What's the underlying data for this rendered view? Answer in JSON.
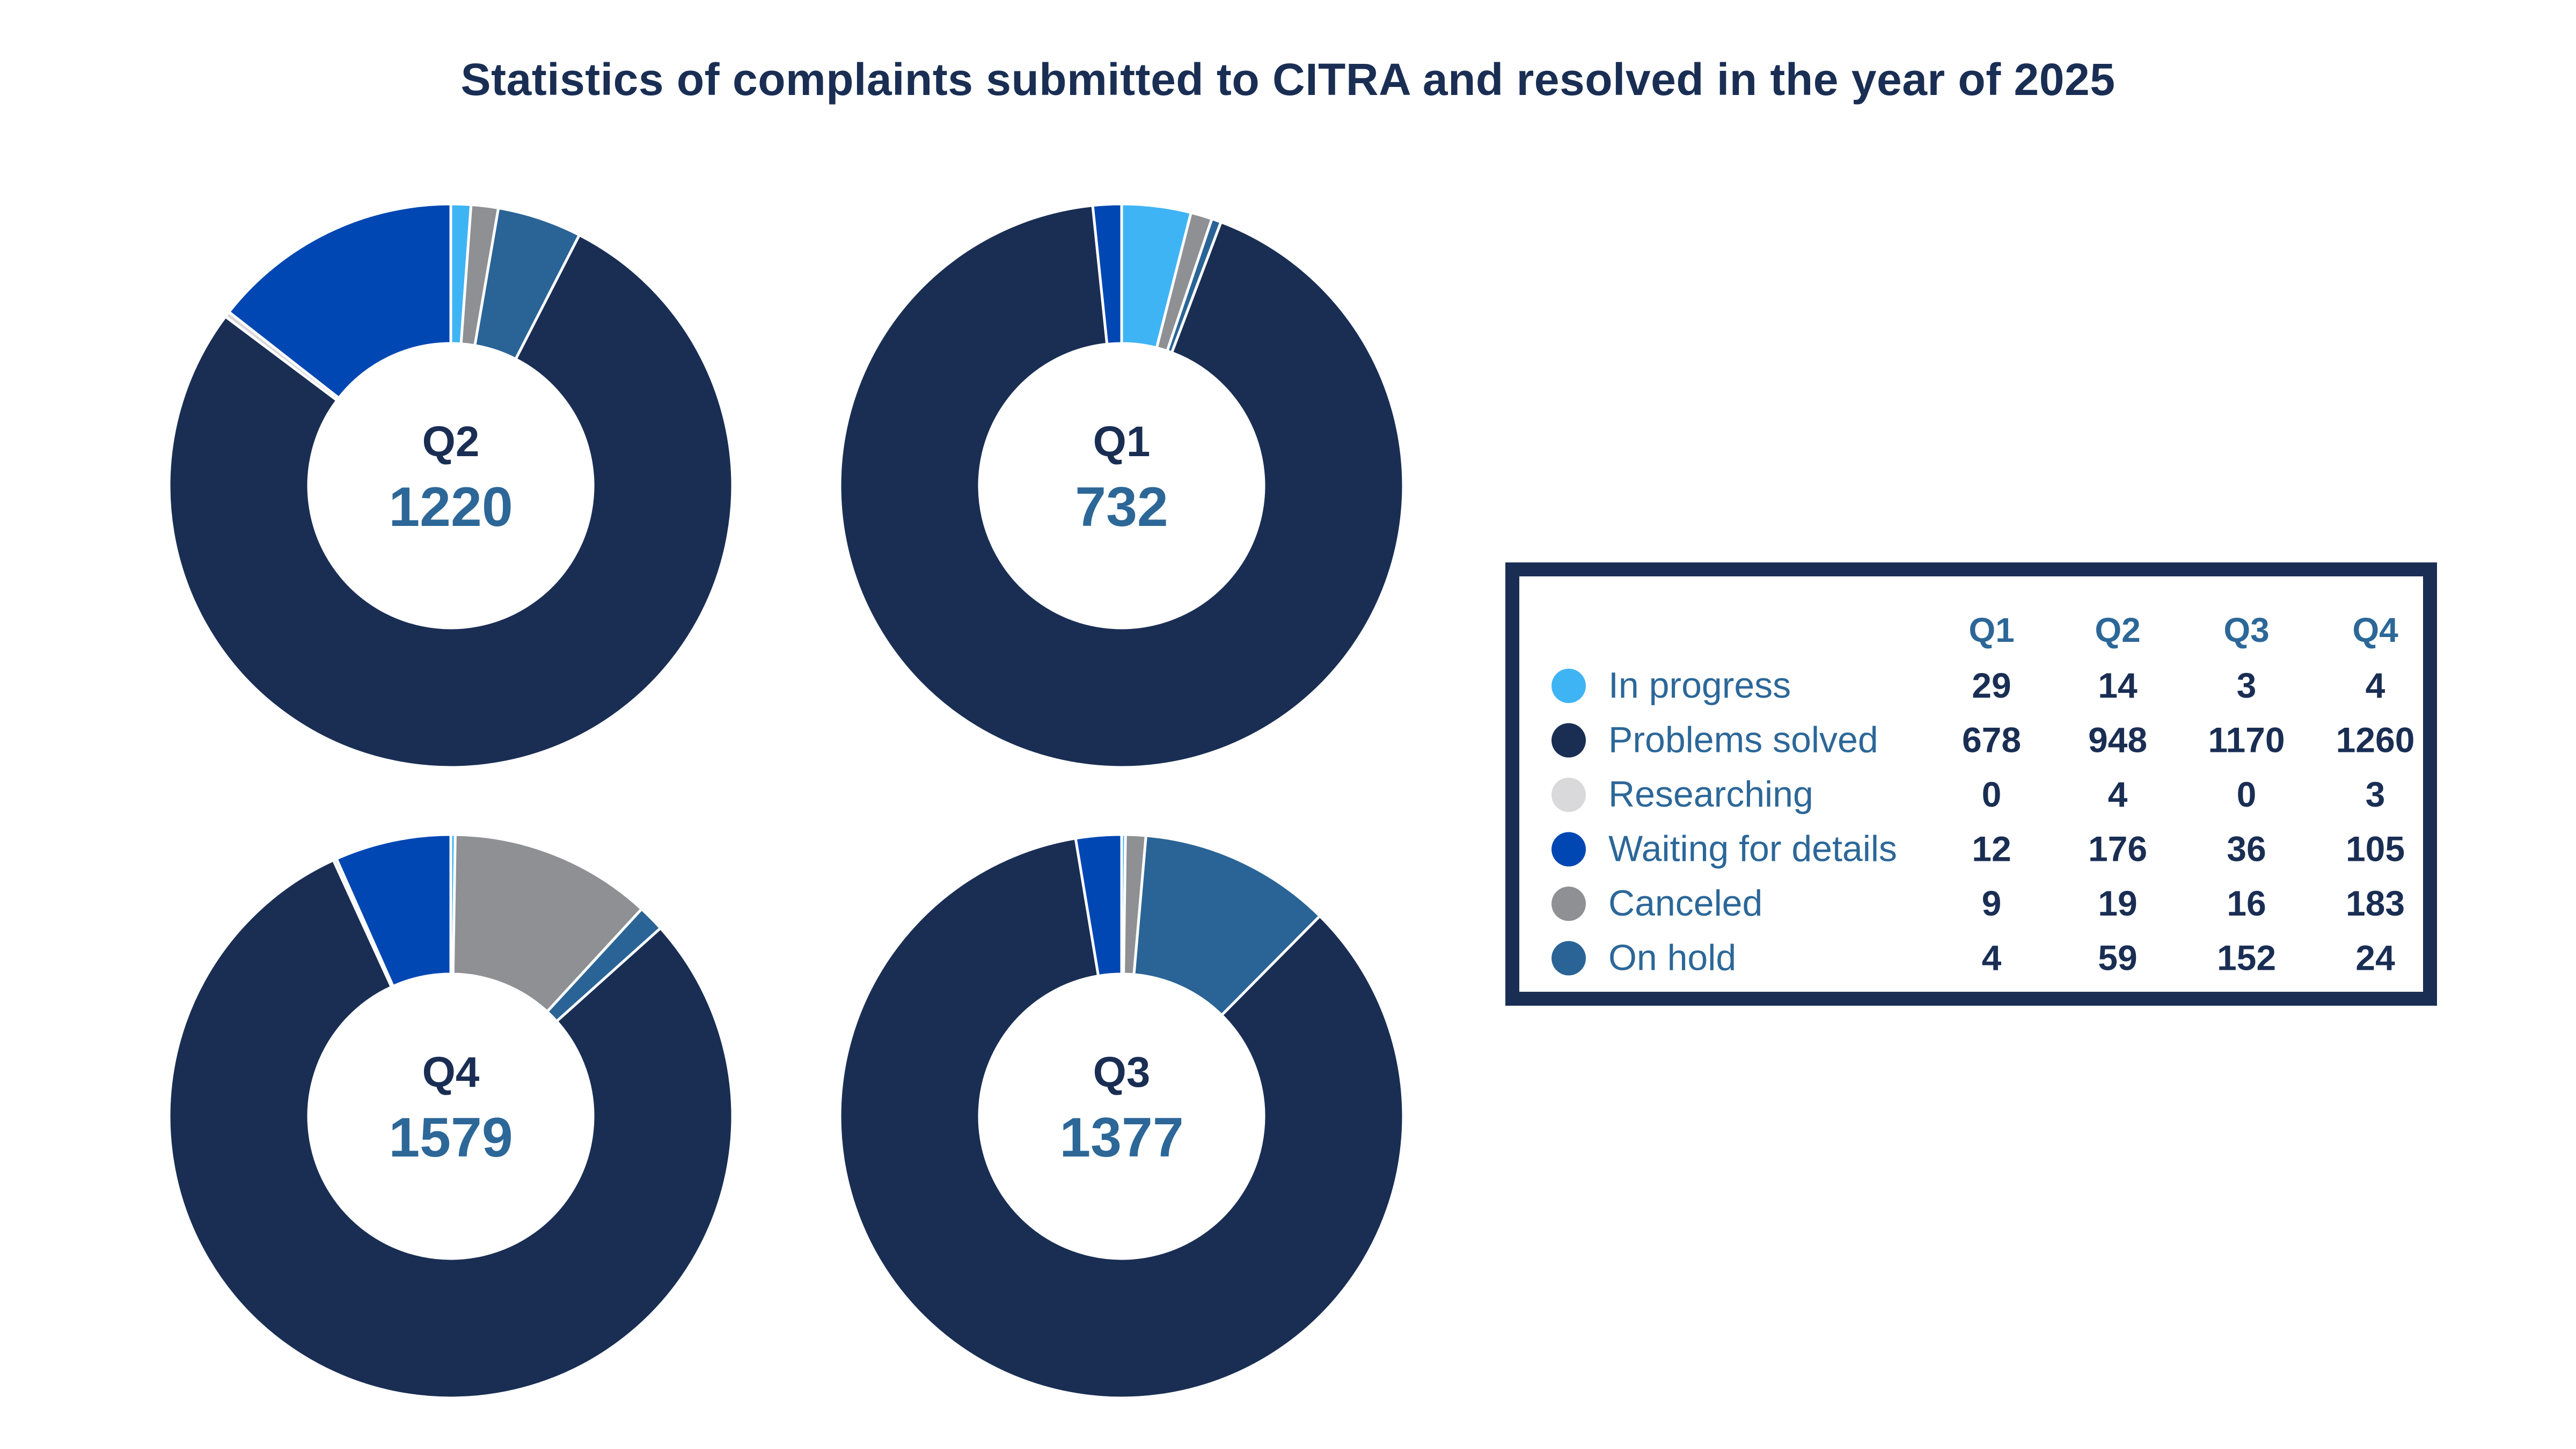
{
  "chart_data": {
    "type": "pie",
    "title": "Statistics of complaints submitted to CITRA and resolved in the year of 2025",
    "categories": [
      "In progress",
      "Problems solved",
      "Researching",
      "Waiting for details",
      "Canceled",
      "On hold"
    ],
    "colors": [
      "#3fb4f5",
      "#1a2e54",
      "#d9d9dc",
      "#0047b3",
      "#8e9094",
      "#2a6496"
    ],
    "quarters": [
      "Q1",
      "Q2",
      "Q3",
      "Q4"
    ],
    "series": [
      {
        "name": "Q1",
        "total": "732",
        "values": [
          29,
          678,
          0,
          12,
          9,
          4
        ]
      },
      {
        "name": "Q2",
        "total": "1220",
        "values": [
          14,
          948,
          4,
          176,
          19,
          59
        ]
      },
      {
        "name": "Q3",
        "total": "1377",
        "values": [
          3,
          1170,
          0,
          36,
          16,
          152
        ]
      },
      {
        "name": "Q4",
        "total": "1579",
        "values": [
          4,
          1260,
          3,
          105,
          183,
          24
        ]
      }
    ],
    "donut_order": [
      "Q2",
      "Q1",
      "Q4",
      "Q3"
    ],
    "legend": "right"
  }
}
